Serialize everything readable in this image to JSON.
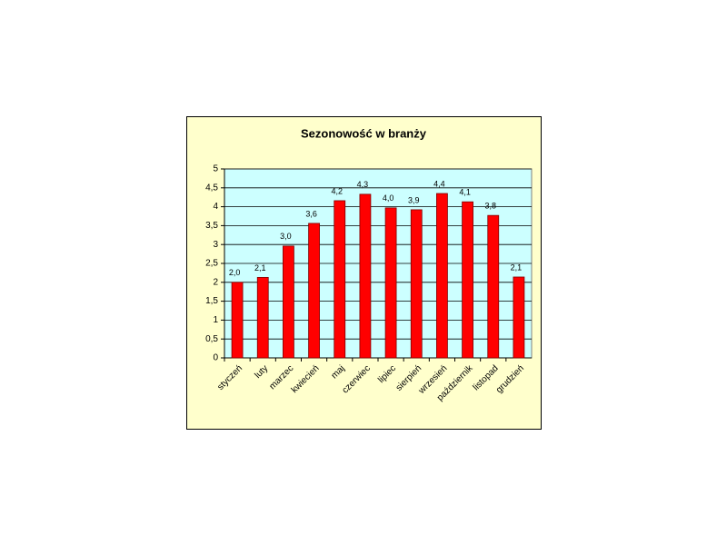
{
  "chart_data": {
    "type": "bar",
    "title": "Sezonowość w branży",
    "categories": [
      "styczeń",
      "luty",
      "marzec",
      "kwiecień",
      "maj",
      "czerwiec",
      "lipiec",
      "sierpień",
      "wrzesień",
      "październik",
      "listopad",
      "grudzień"
    ],
    "values": [
      2.0,
      2.13,
      2.96,
      3.56,
      4.16,
      4.33,
      3.97,
      3.92,
      4.35,
      4.13,
      3.77,
      2.14
    ],
    "value_labels": [
      "2,0",
      "2,1",
      "3,0",
      "3,6",
      "4,2",
      "4,3",
      "4,0",
      "3,9",
      "4,4",
      "4,1",
      "3,8",
      "2,1"
    ],
    "color": "#ff0000",
    "ylim": [
      0,
      5
    ],
    "yticks": [
      0,
      {
        "value": 0.5,
        "label": "0,5"
      },
      1,
      {
        "value": 1.5,
        "label": "1,5"
      },
      2,
      {
        "value": 2.5,
        "label": "2,5"
      },
      3,
      {
        "value": 3.5,
        "label": "3,5"
      },
      4,
      {
        "value": 4.5,
        "label": "4,5"
      },
      5
    ],
    "grid": true
  }
}
